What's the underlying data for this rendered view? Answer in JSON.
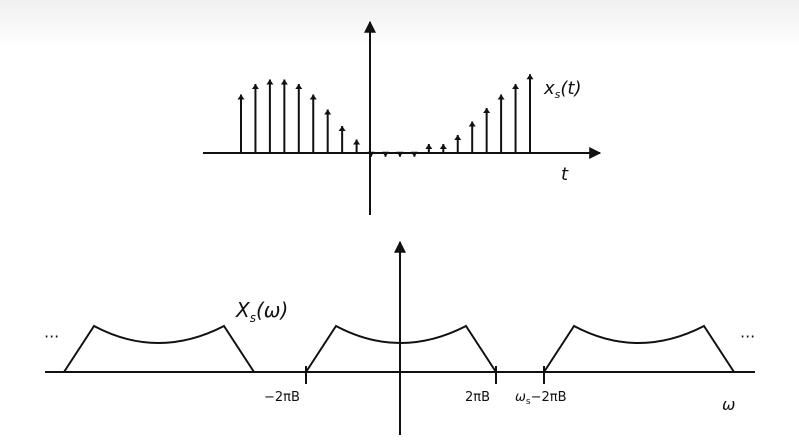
{
  "top_plot": {
    "signal_label": "x",
    "signal_sub": "s",
    "signal_arg": "(t)",
    "t_axis_label": "t",
    "samples": [
      0.78,
      0.92,
      0.98,
      0.98,
      0.92,
      0.78,
      0.58,
      0.36,
      0.18,
      -0.05,
      -0.05,
      -0.05,
      -0.05,
      0.12,
      0.12,
      0.24,
      0.42,
      0.6,
      0.78,
      0.92,
      1.05
    ]
  },
  "bottom_plot": {
    "spectrum_label": "X",
    "spectrum_sub": "s",
    "spectrum_arg": "(ω)",
    "omega_axis_label": "ω",
    "ellipsis_left": "···",
    "ellipsis_right": "···",
    "tick_neg_2piB": "−2πB",
    "tick_pos_2piB": "2πB",
    "tick_omega_s_prefix": "ω",
    "tick_omega_s_sub": "s",
    "tick_omega_s_suffix": "−2πB"
  },
  "colors": {
    "stroke": "#111111",
    "background": "#ffffff"
  }
}
